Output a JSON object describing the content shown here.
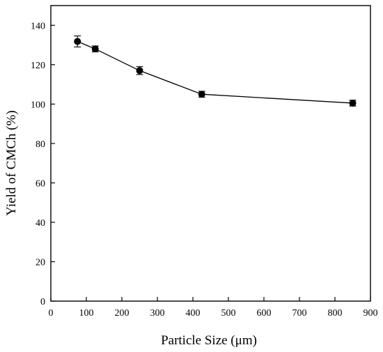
{
  "chart_data": {
    "type": "line",
    "xlabel": "Particle Size (μm)",
    "ylabel": "Yield of CMCh (%)",
    "xlim": [
      0,
      900
    ],
    "ylim": [
      0,
      150
    ],
    "x_ticks": [
      "0",
      "100",
      "200",
      "300",
      "400",
      "500",
      "600",
      "700",
      "800",
      "900"
    ],
    "y_ticks": [
      "0",
      "20",
      "40",
      "60",
      "80",
      "100",
      "120",
      "140"
    ],
    "grid": false,
    "legend": "none",
    "series": [
      {
        "x": [
          75,
          125,
          250,
          425,
          850
        ],
        "y": [
          131.8,
          128.0,
          117.0,
          105.0,
          100.5
        ],
        "error": [
          2.8,
          1.5,
          2.0,
          1.5,
          1.5
        ],
        "marker": "circle",
        "color": "#000000"
      }
    ]
  }
}
